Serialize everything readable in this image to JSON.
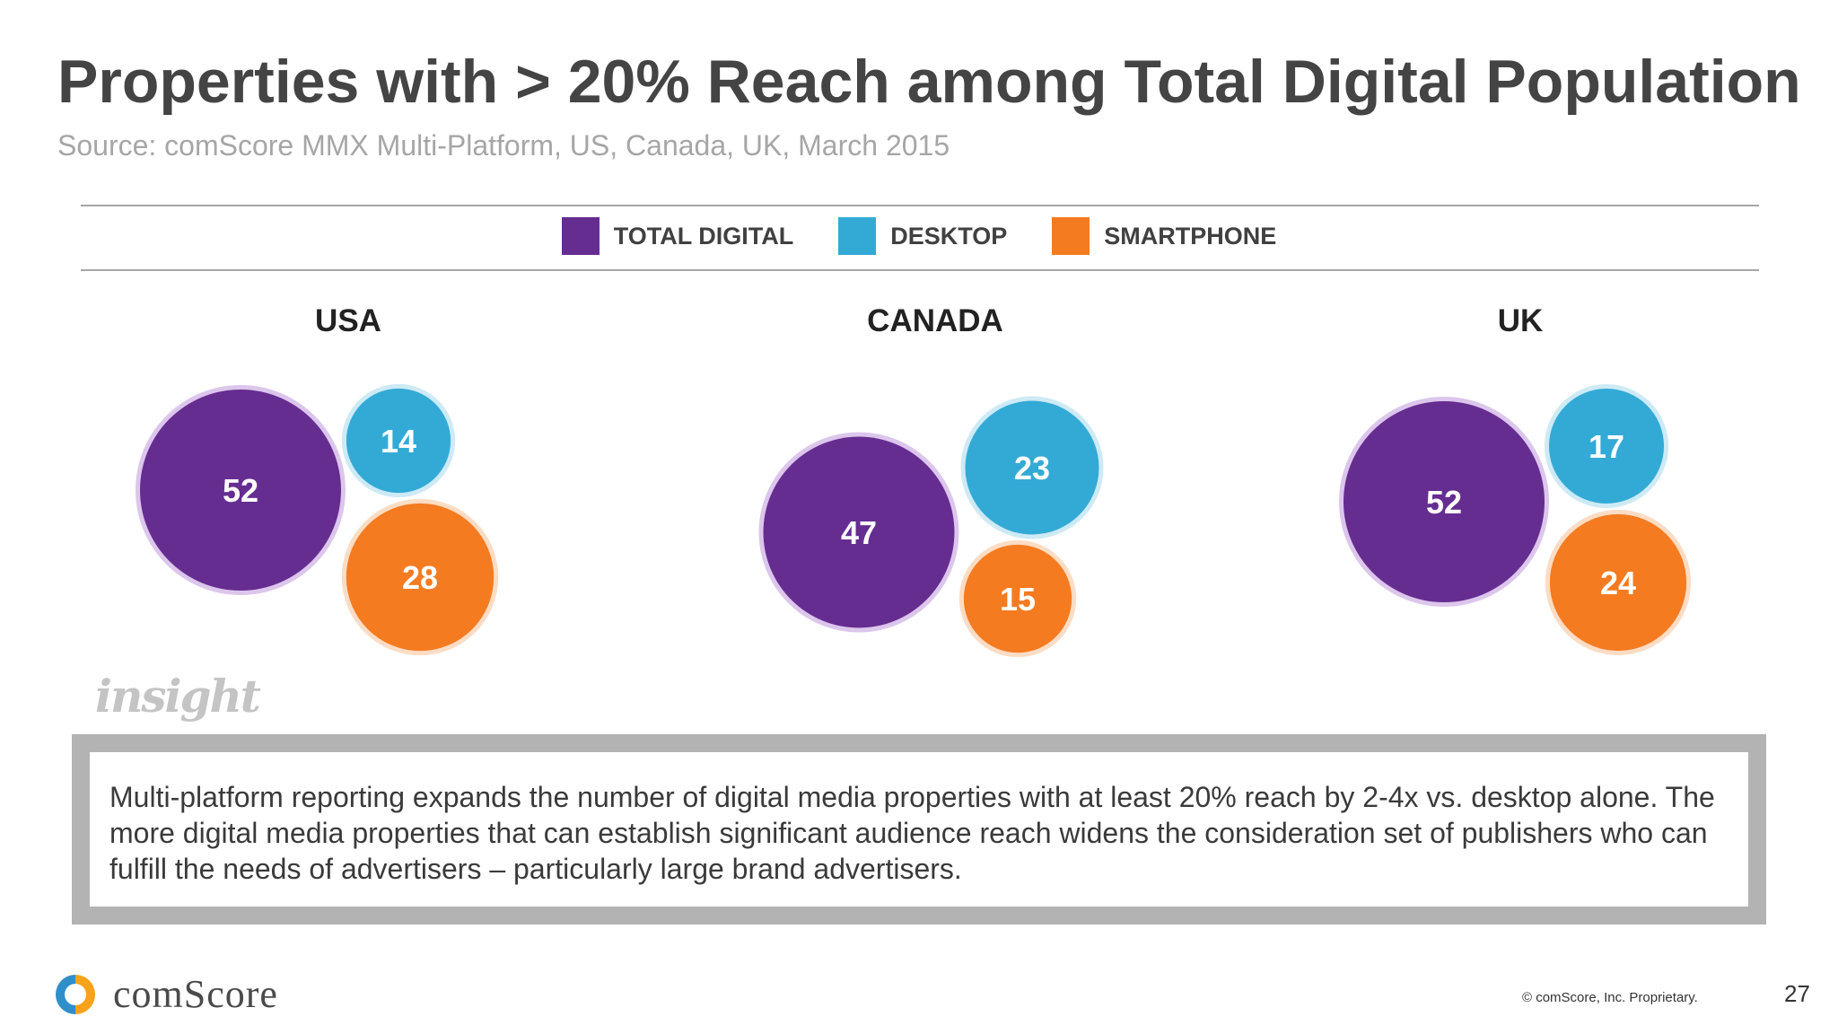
{
  "header": {
    "title": "Properties with > 20% Reach among Total Digital Population",
    "source": "Source: comScore MMX Multi-Platform, US, Canada, UK, March 2015"
  },
  "chart_data": {
    "type": "bubble",
    "legend_position": "top-center",
    "legend": [
      {
        "name": "TOTAL DIGITAL",
        "color": "#662d91"
      },
      {
        "name": "DESKTOP",
        "color": "#33aad6"
      },
      {
        "name": "SMARTPHONE",
        "color": "#f47b20"
      }
    ],
    "groups": [
      {
        "country": "USA",
        "total_digital": 52,
        "desktop": 14,
        "smartphone": 28
      },
      {
        "country": "CANADA",
        "total_digital": 47,
        "desktop": 23,
        "smartphone": 15
      },
      {
        "country": "UK",
        "total_digital": 52,
        "desktop": 17,
        "smartphone": 24
      }
    ]
  },
  "insight": {
    "label": "insight",
    "text": "Multi-platform reporting expands the number of digital media properties with at least 20% reach by 2-4x vs. desktop alone. The more digital media properties that can establish significant audience reach widens the consideration set of publishers who can fulfill the needs of advertisers – particularly large brand advertisers."
  },
  "footer": {
    "logo": "comScore",
    "logo_icon": "comscore-logo-icon",
    "copyright": "© comScore, Inc. Proprietary.",
    "page_number": "27"
  }
}
